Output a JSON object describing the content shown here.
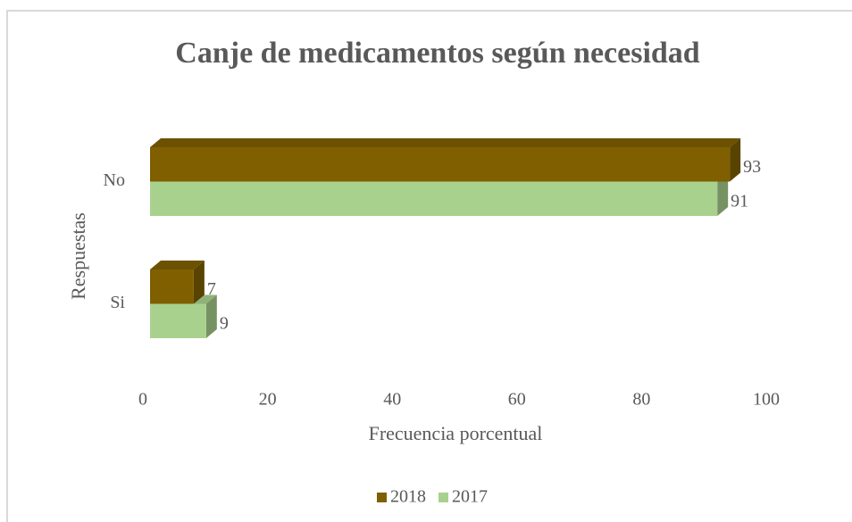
{
  "chart_data": {
    "type": "bar3d-horizontal",
    "title": "Canje de medicamentos según necesidad",
    "xlabel": "Frecuencia porcentual",
    "ylabel": "Respuestas",
    "categories": [
      "No",
      "Si"
    ],
    "series": [
      {
        "name": "2018",
        "color": "#7f5f00",
        "values": [
          93,
          7
        ]
      },
      {
        "name": "2017",
        "color": "#a9d18e",
        "values": [
          91,
          9
        ]
      }
    ],
    "xlim": [
      0,
      100
    ],
    "xticks": [
      0,
      20,
      40,
      60,
      80,
      100
    ],
    "legend": "bottom"
  }
}
